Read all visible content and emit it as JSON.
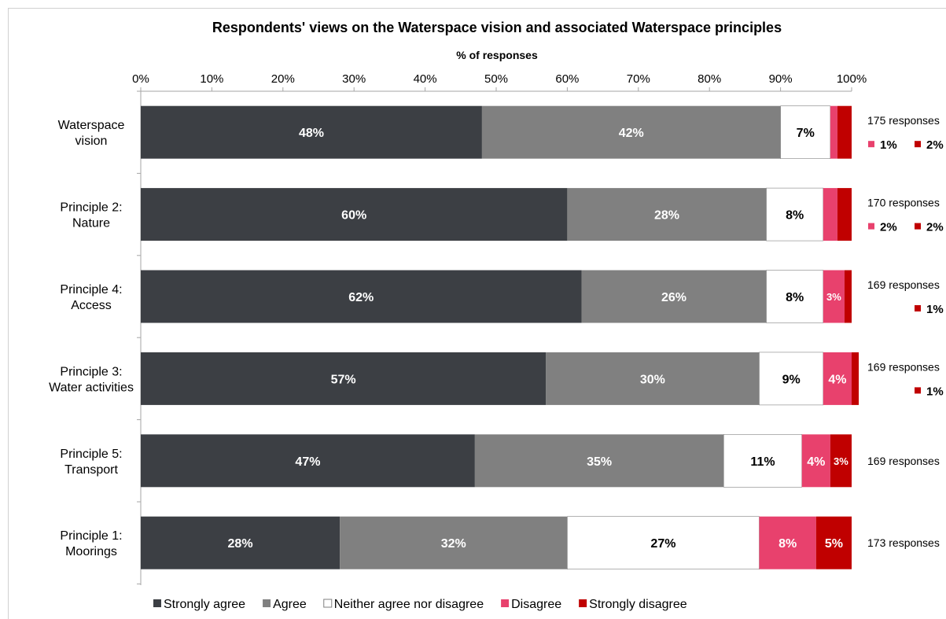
{
  "chart_data": {
    "type": "bar",
    "orientation": "horizontal-stacked-100",
    "title": "Respondents' views on the Waterspace vision and associated Waterspace principles",
    "xlabel": "% of responses",
    "xlim": [
      0,
      100
    ],
    "x_ticks": [
      "0%",
      "10%",
      "20%",
      "30%",
      "40%",
      "50%",
      "60%",
      "70%",
      "80%",
      "90%",
      "100%"
    ],
    "legend_position": "bottom",
    "categories": [
      {
        "lines": [
          "Waterspace",
          "vision"
        ],
        "responses": "175 responses"
      },
      {
        "lines": [
          "Principle 2:",
          "Nature"
        ],
        "responses": "170 responses"
      },
      {
        "lines": [
          "Principle 4:",
          "Access"
        ],
        "responses": "169 responses"
      },
      {
        "lines": [
          "Principle 3:",
          "Water activities"
        ],
        "responses": "169 responses"
      },
      {
        "lines": [
          "Principle 5:",
          "Transport"
        ],
        "responses": "169 responses"
      },
      {
        "lines": [
          "Principle 1:",
          "Moorings"
        ],
        "responses": "173 responses"
      }
    ],
    "series": [
      {
        "name": "Strongly agree",
        "color": "#3c3f44",
        "label_color": "#ffffff",
        "values": [
          48,
          60,
          62,
          57,
          47,
          28
        ],
        "labels": [
          "48%",
          "60%",
          "62%",
          "57%",
          "47%",
          "28%"
        ]
      },
      {
        "name": "Agree",
        "color": "#808080",
        "label_color": "#ffffff",
        "values": [
          42,
          28,
          26,
          30,
          35,
          32
        ],
        "labels": [
          "42%",
          "28%",
          "26%",
          "30%",
          "35%",
          "32%"
        ]
      },
      {
        "name": "Neither agree nor disagree",
        "color": "#ffffff",
        "label_color": "#000000",
        "values": [
          7,
          8,
          8,
          9,
          11,
          27
        ],
        "labels": [
          "7%",
          "8%",
          "8%",
          "9%",
          "11%",
          "27%"
        ]
      },
      {
        "name": "Disagree",
        "color": "#e8416d",
        "label_color": "#ffffff",
        "values": [
          1,
          2,
          3,
          4,
          4,
          8
        ],
        "labels": [
          "",
          "",
          "3%",
          "4%",
          "4%",
          "8%"
        ]
      },
      {
        "name": "Strongly disagree",
        "color": "#c00000",
        "label_color": "#ffffff",
        "values": [
          2,
          2,
          1,
          1,
          3,
          5
        ],
        "labels": [
          "",
          "",
          "",
          "",
          "3%",
          "5%"
        ]
      }
    ],
    "side_labels": [
      [
        {
          "series": 3,
          "text": "1%"
        },
        {
          "series": 4,
          "text": "2%"
        }
      ],
      [
        {
          "series": 3,
          "text": "2%"
        },
        {
          "series": 4,
          "text": "2%"
        }
      ],
      [
        {
          "series": 4,
          "text": "1%"
        }
      ],
      [
        {
          "series": 4,
          "text": "1%"
        }
      ],
      [],
      []
    ]
  }
}
